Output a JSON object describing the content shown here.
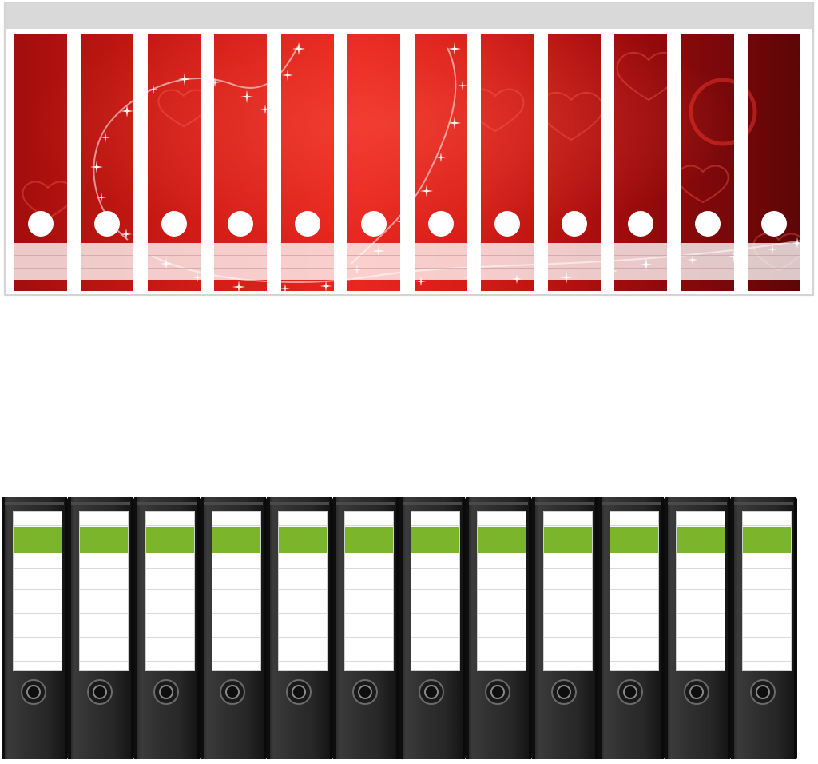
{
  "sheet": {
    "strip_count": 12,
    "colors": {
      "frame": "#d9d9d9",
      "red_bright": "#e3241e",
      "red_mid": "#c81a14",
      "red_dark": "#7a0708",
      "sparkle": "#ffffff"
    },
    "motif": [
      "heart-icon",
      "sparkle-icon"
    ]
  },
  "binders": {
    "count": 12,
    "colors": {
      "body": "#2b2b2b",
      "label": "#ffffff",
      "stripe": "#7bb52b",
      "ring": "#1a1a1a"
    }
  }
}
